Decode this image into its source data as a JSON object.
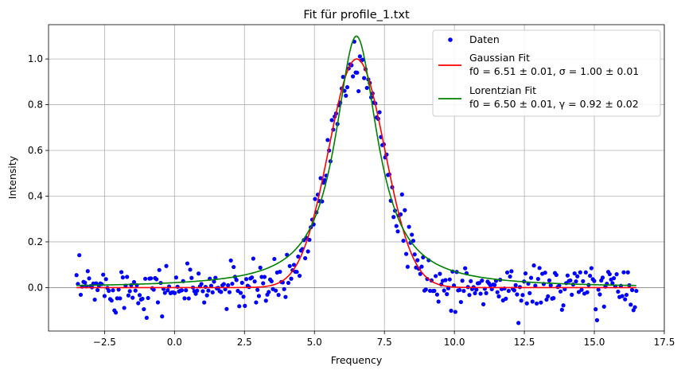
{
  "chart_data": {
    "type": "scatter",
    "title": "Fit für profile_1.txt",
    "xlabel": "Frequency",
    "ylabel": "Intensity",
    "xlim": [
      -4.5,
      17.5
    ],
    "ylim": [
      -0.19,
      1.15
    ],
    "x_ticks": [
      -2.5,
      0.0,
      2.5,
      5.0,
      7.5,
      10.0,
      12.5,
      15.0,
      17.5
    ],
    "x_tick_labels": [
      "−2.5",
      "0.0",
      "2.5",
      "5.0",
      "7.5",
      "10.0",
      "12.5",
      "15.0",
      "17.5"
    ],
    "y_ticks": [
      0.0,
      0.2,
      0.4,
      0.6,
      0.8,
      1.0
    ],
    "y_tick_labels": [
      "0.0",
      "0.2",
      "0.4",
      "0.6",
      "0.8",
      "1.0"
    ],
    "grid": true,
    "legend_position": "top-right",
    "colors": {
      "data": "#0000ff",
      "gaussian": "#ff0000",
      "lorentzian": "#008000"
    },
    "series": [
      {
        "name": "Daten",
        "kind": "scatter",
        "x_range": [
          -3.5,
          16.5
        ],
        "n_points": 400,
        "noise": 0.05,
        "model": "gaussian"
      },
      {
        "name": "Gaussian Fit",
        "kind": "line",
        "params": {
          "f0": 6.51,
          "sigma": 1.0,
          "amplitude": 1.0
        },
        "x_range": [
          -3.5,
          16.5
        ]
      },
      {
        "name": "Lorentzian Fit",
        "kind": "line",
        "params": {
          "f0": 6.5,
          "gamma": 0.92,
          "amplitude": 1.1
        },
        "x_range": [
          -3.5,
          16.5
        ]
      }
    ],
    "legend": [
      {
        "marker": "dot",
        "color": "#0000ff",
        "label": "Daten"
      },
      {
        "marker": "line",
        "color": "#ff0000",
        "label": "Gaussian Fit",
        "sublabel": "f0 = 6.51 ± 0.01, σ = 1.00 ± 0.01"
      },
      {
        "marker": "line",
        "color": "#008000",
        "label": "Lorentzian Fit",
        "sublabel": "f0 = 6.50 ± 0.01, γ = 0.92 ± 0.02"
      }
    ]
  }
}
